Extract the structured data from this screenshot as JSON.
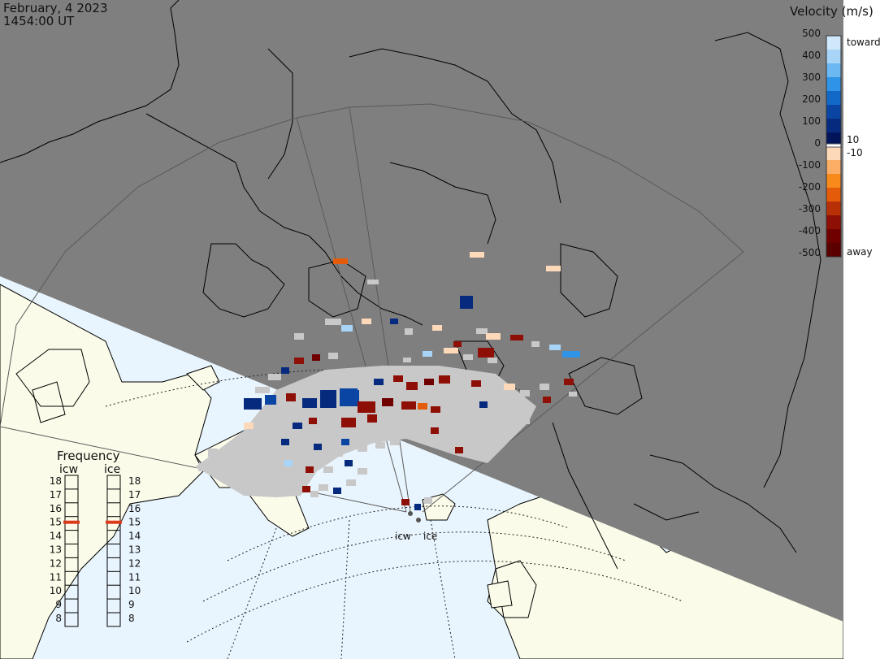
{
  "header": {
    "date": "February, 4 2023",
    "time": "1454:00 UT"
  },
  "velocity_scale": {
    "title": "Velocity (m/s)",
    "ticks": [
      "500",
      "400",
      "300",
      "200",
      "100",
      "0",
      "-100",
      "-200",
      "-300",
      "-400",
      "-500"
    ],
    "label_toward": "toward",
    "label_away": "away",
    "label_pos": "10",
    "label_neg": "-10",
    "colors_toward": [
      "#cfe8fb",
      "#a7d4f7",
      "#6cb8f2",
      "#2f93e6",
      "#1269c8",
      "#0b45a3",
      "#062a7e",
      "#02145a"
    ],
    "colors_away": [
      "#fdd9b9",
      "#fcae66",
      "#f88a1c",
      "#e45c0a",
      "#b83005",
      "#8e0f05",
      "#700000",
      "#5a0000"
    ]
  },
  "frequency_panel": {
    "title": "Frequency",
    "columns": [
      {
        "name": "icw",
        "selected": "15"
      },
      {
        "name": "ice",
        "selected": "15"
      }
    ],
    "ticks": [
      "18",
      "17",
      "16",
      "15",
      "14",
      "13",
      "12",
      "11",
      "10",
      "9",
      "8"
    ],
    "marker_color": "#dd3a1c"
  },
  "stations": {
    "icw": "icw",
    "ice": "ice"
  },
  "colors": {
    "night": "#7f7f7f",
    "day_land": "#fbfbe9",
    "day_ocean": "#e9f5fe",
    "coast": "#000000",
    "gs_gray": "#c8c8c8"
  }
}
